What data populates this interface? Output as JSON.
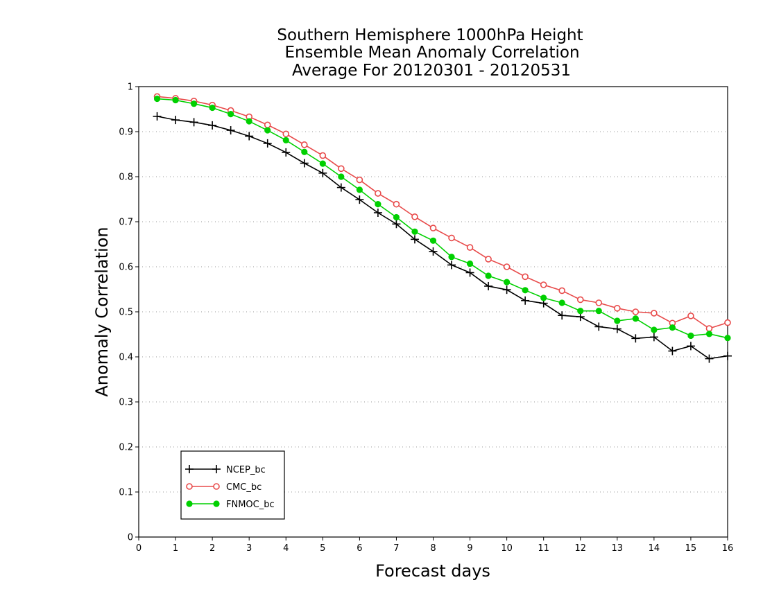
{
  "chart_data": {
    "type": "line",
    "title_lines": [
      "Southern Hemisphere 1000hPa Height",
      "Ensemble Mean Anomaly Correlation",
      "Average For 20120301 - 20120531"
    ],
    "xlabel": "Forecast days",
    "ylabel": "Anomaly Correlation",
    "xlim": [
      0,
      16
    ],
    "ylim": [
      0,
      1
    ],
    "x_ticks": [
      "0",
      "1",
      "2",
      "3",
      "4",
      "5",
      "6",
      "7",
      "8",
      "9",
      "10",
      "11",
      "12",
      "13",
      "14",
      "15",
      "16"
    ],
    "y_ticks": [
      "0",
      "0.1",
      "0.2",
      "0.3",
      "0.4",
      "0.5",
      "0.6",
      "0.7",
      "0.8",
      "0.9",
      "1"
    ],
    "grid": "horizontal-dotted",
    "legend_position": "bottom-left",
    "x": [
      0.5,
      1,
      1.5,
      2,
      2.5,
      3,
      3.5,
      4,
      4.5,
      5,
      5.5,
      6,
      6.5,
      7,
      7.5,
      8,
      8.5,
      9,
      9.5,
      10,
      10.5,
      11,
      11.5,
      12,
      12.5,
      13,
      13.5,
      14,
      14.5,
      15,
      15.5,
      16
    ],
    "series": [
      {
        "name": "NCEP_bc",
        "color": "#000000",
        "marker": "plus",
        "values": [
          0.934,
          0.926,
          0.921,
          0.914,
          0.903,
          0.89,
          0.874,
          0.854,
          0.83,
          0.808,
          0.776,
          0.749,
          0.72,
          0.695,
          0.661,
          0.634,
          0.604,
          0.587,
          0.557,
          0.549,
          0.525,
          0.519,
          0.492,
          0.489,
          0.467,
          0.462,
          0.441,
          0.444,
          0.413,
          0.424,
          0.396,
          0.402
        ]
      },
      {
        "name": "CMC_bc",
        "color": "#e84a4a",
        "marker": "open-circle",
        "values": [
          0.978,
          0.974,
          0.968,
          0.959,
          0.947,
          0.933,
          0.915,
          0.895,
          0.871,
          0.847,
          0.818,
          0.793,
          0.763,
          0.739,
          0.711,
          0.686,
          0.664,
          0.643,
          0.617,
          0.6,
          0.578,
          0.56,
          0.547,
          0.527,
          0.52,
          0.508,
          0.5,
          0.497,
          0.475,
          0.491,
          0.463,
          0.476
        ]
      },
      {
        "name": "FNMOC_bc",
        "color": "#00d000",
        "marker": "filled-circle",
        "values": [
          0.973,
          0.97,
          0.962,
          0.953,
          0.939,
          0.923,
          0.903,
          0.881,
          0.855,
          0.829,
          0.8,
          0.771,
          0.739,
          0.71,
          0.678,
          0.658,
          0.622,
          0.607,
          0.58,
          0.566,
          0.548,
          0.531,
          0.52,
          0.502,
          0.502,
          0.48,
          0.485,
          0.46,
          0.465,
          0.447,
          0.451,
          0.442
        ]
      }
    ]
  }
}
